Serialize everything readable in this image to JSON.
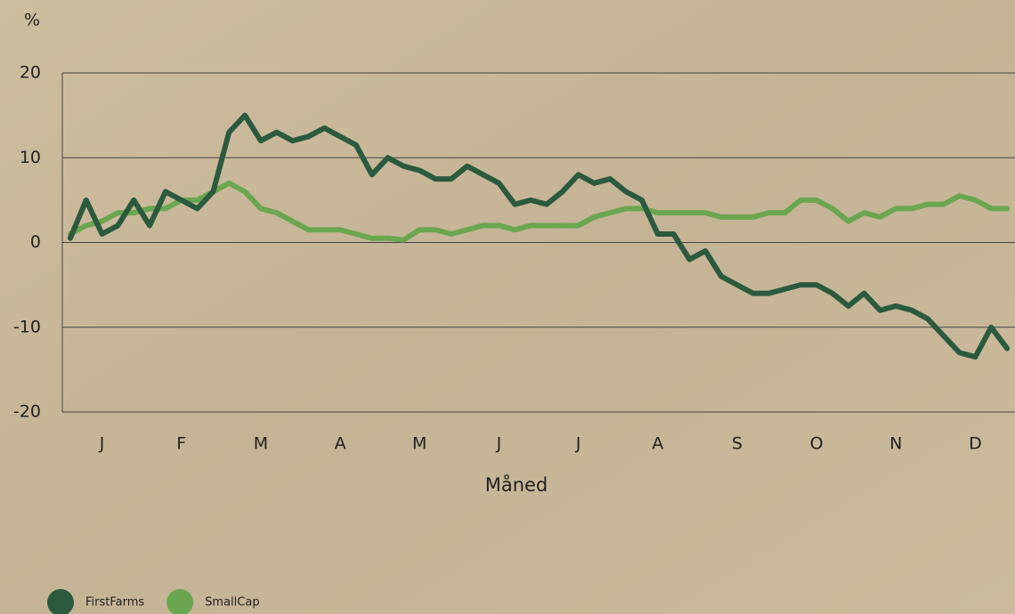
{
  "chart_data": {
    "type": "line",
    "y_unit": "%",
    "x_label": "Måned",
    "categories": [
      null,
      null,
      "J",
      null,
      null,
      null,
      null,
      "F",
      null,
      null,
      null,
      null,
      "M",
      null,
      null,
      null,
      null,
      "A",
      null,
      null,
      null,
      null,
      "M",
      null,
      null,
      null,
      null,
      "J",
      null,
      null,
      null,
      null,
      "J",
      null,
      null,
      null,
      null,
      "A",
      null,
      null,
      null,
      null,
      "S",
      null,
      null,
      null,
      null,
      "O",
      null,
      null,
      null,
      null,
      "N",
      null,
      null,
      null,
      null,
      "D",
      null,
      null
    ],
    "series": [
      {
        "name": "FirstFarms",
        "color": "#2b5a3e",
        "values": [
          0.5,
          5,
          1,
          2,
          5,
          2,
          6,
          5,
          4,
          6,
          13,
          15,
          12,
          13,
          12,
          12.5,
          13.5,
          12.5,
          11.5,
          8,
          10,
          9,
          8.5,
          7.5,
          7.5,
          9,
          8,
          7,
          4.5,
          5,
          4.5,
          6,
          8,
          7,
          7.5,
          6,
          5,
          1,
          1,
          -2,
          -1,
          -4,
          -5,
          -6,
          -6,
          -5.5,
          -5,
          -5,
          -6,
          -7.5,
          -6,
          -8,
          -7.5,
          -8,
          -9,
          -11,
          -13,
          -13.5,
          -10,
          -12.5
        ]
      },
      {
        "name": "SmallCap",
        "color": "#6aa650",
        "values": [
          1,
          2,
          2.5,
          3.5,
          3.5,
          4,
          4,
          5,
          5,
          6,
          7,
          6,
          4,
          3.5,
          2.5,
          1.5,
          1.5,
          1.5,
          1,
          0.5,
          0.5,
          0.3,
          1.5,
          1.5,
          1,
          1.5,
          2,
          2,
          1.5,
          2,
          2,
          2,
          2,
          3,
          3.5,
          4,
          4,
          3.5,
          3.5,
          3.5,
          3.5,
          3,
          3,
          3,
          3.5,
          3.5,
          5,
          5,
          4,
          2.5,
          3.5,
          3,
          4,
          4,
          4.5,
          4.5,
          5.5,
          5,
          4,
          4
        ]
      }
    ],
    "ylim": [
      -20,
      20
    ],
    "yticks": [
      -20,
      -10,
      0,
      10,
      20
    ],
    "grid": true,
    "legend": "bottom-left"
  }
}
